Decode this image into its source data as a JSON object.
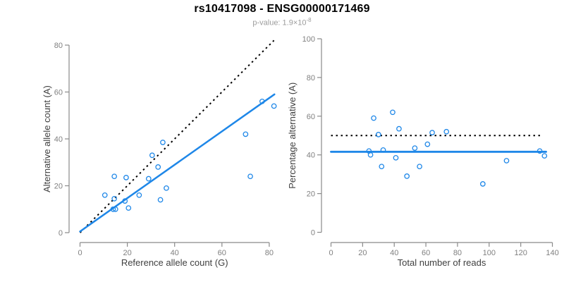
{
  "header": {
    "title": "rs10417098 - ENSG00000171469",
    "subtitle_base": "p-value: 1.9×10",
    "subtitle_exp": "-8"
  },
  "colors": {
    "accent_blue": "#1E87E8",
    "dotted_black": "#000000",
    "axis_line": "#8a8a8a",
    "tick_label": "#808080",
    "axis_title": "#404040",
    "title_text": "#000000",
    "subtitle_text": "#9c9c9c"
  },
  "chart_data": [
    {
      "type": "scatter",
      "name": "allele-counts-scatter",
      "xlabel": "Reference allele count (G)",
      "ylabel": "Alternative allele count (A)",
      "xlim": [
        0,
        80
      ],
      "ylim": [
        0,
        80
      ],
      "xticks": [
        0,
        20,
        40,
        60,
        80
      ],
      "yticks": [
        0,
        20,
        40,
        60,
        80
      ],
      "grid": false,
      "points": [
        [
          77,
          56
        ],
        [
          82,
          54
        ],
        [
          70,
          42
        ],
        [
          72,
          24
        ],
        [
          35,
          38.5
        ],
        [
          30.5,
          33
        ],
        [
          33,
          28
        ],
        [
          29,
          23
        ],
        [
          14.5,
          24
        ],
        [
          19.5,
          23.5
        ],
        [
          36.5,
          19
        ],
        [
          10.5,
          16
        ],
        [
          25,
          16
        ],
        [
          14.5,
          14.5
        ],
        [
          19,
          13.5
        ],
        [
          34,
          14
        ],
        [
          20.5,
          10.5
        ],
        [
          14,
          10
        ],
        [
          15,
          10
        ]
      ],
      "lines": [
        {
          "name": "identity-line",
          "style": "dotted",
          "color": "#000000",
          "width": 2,
          "x1": 0,
          "y1": 0,
          "x2": 82,
          "y2": 82
        },
        {
          "name": "regression-line",
          "style": "solid",
          "color": "#1E87E8",
          "width": 2.5,
          "x1": 0,
          "y1": 0.5,
          "x2": 82.2,
          "y2": 59
        }
      ]
    },
    {
      "type": "scatter",
      "name": "percentage-vs-reads-scatter",
      "xlabel": "Total number of reads",
      "ylabel": "Percentage alternative (A)",
      "xlim": [
        0,
        140
      ],
      "ylim": [
        0,
        100
      ],
      "xticks": [
        0,
        20,
        40,
        60,
        80,
        100,
        120,
        140
      ],
      "yticks": [
        0,
        20,
        40,
        60,
        80,
        100
      ],
      "grid": false,
      "points": [
        [
          27,
          59
        ],
        [
          39,
          62
        ],
        [
          43,
          53.5
        ],
        [
          30,
          50.5
        ],
        [
          64,
          51.5
        ],
        [
          73,
          52
        ],
        [
          61,
          45.5
        ],
        [
          53,
          43.5
        ],
        [
          24,
          42
        ],
        [
          33,
          42.5
        ],
        [
          25,
          40
        ],
        [
          41,
          38.5
        ],
        [
          32,
          34
        ],
        [
          56,
          34
        ],
        [
          48,
          29
        ],
        [
          96,
          25
        ],
        [
          111,
          37
        ],
        [
          132,
          42
        ],
        [
          135,
          39.5
        ]
      ],
      "lines": [
        {
          "name": "expected-50pct-line",
          "style": "dotted",
          "color": "#000000",
          "width": 2,
          "x1": 0,
          "y1": 50,
          "x2": 134,
          "y2": 50
        },
        {
          "name": "mean-percentage-line",
          "style": "solid",
          "color": "#1E87E8",
          "width": 2.8,
          "x1": 0,
          "y1": 41.6,
          "x2": 136,
          "y2": 41.6
        }
      ]
    }
  ]
}
